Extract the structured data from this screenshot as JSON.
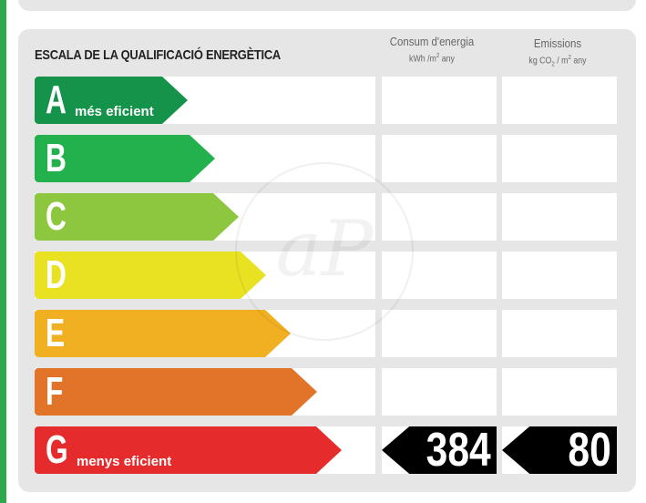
{
  "header": {
    "title": "ESCALA DE LA QUALIFICACIÓ ENERGÈTICA",
    "consumption_label": "Consum d'energia",
    "consumption_unit_pre": "kWh /m",
    "consumption_unit_sup": "2",
    "consumption_unit_post": " any",
    "emissions_label": "Emissions",
    "emissions_unit_pre": "kg CO",
    "emissions_unit_sub": "2",
    "emissions_unit_mid": " / m",
    "emissions_unit_sup": "2",
    "emissions_unit_post": " any"
  },
  "ratings": [
    {
      "letter": "A",
      "caption": "més eficient",
      "color": "#16934a",
      "fill": 0.45
    },
    {
      "letter": "B",
      "caption": "",
      "color": "#23b14d",
      "fill": 0.53
    },
    {
      "letter": "C",
      "caption": "",
      "color": "#8dc63f",
      "fill": 0.6
    },
    {
      "letter": "D",
      "caption": "",
      "color": "#e8e223",
      "fill": 0.68
    },
    {
      "letter": "E",
      "caption": "",
      "color": "#f0b022",
      "fill": 0.75
    },
    {
      "letter": "F",
      "caption": "",
      "color": "#e2742a",
      "fill": 0.83
    },
    {
      "letter": "G",
      "caption": "menys eficient",
      "color": "#e52b2b",
      "fill": 0.9
    }
  ],
  "current": {
    "rating": "G",
    "consumption": "384",
    "emissions": "80"
  },
  "watermark": "aP"
}
